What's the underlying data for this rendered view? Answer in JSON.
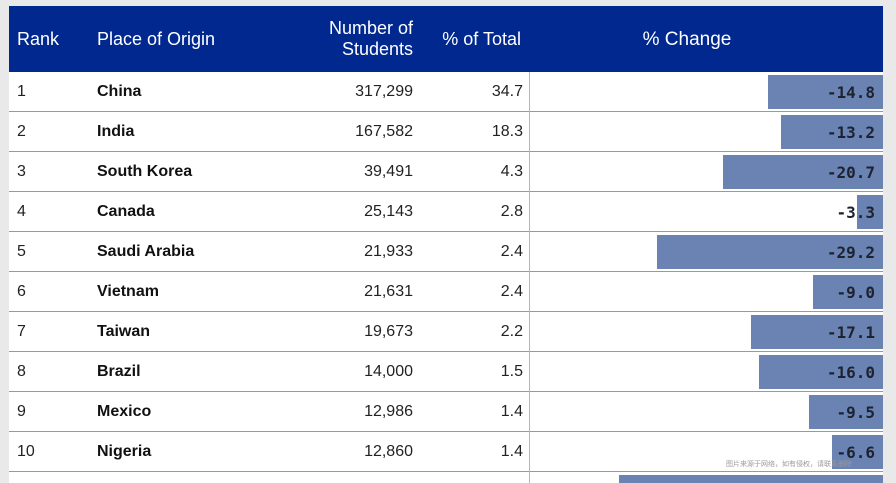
{
  "header": {
    "rank": "Rank",
    "place": "Place of Origin",
    "students_line1": "Number of",
    "students_line2": "Students",
    "pct_total": "% of Total",
    "pct_change": "% Change"
  },
  "chart_data": {
    "type": "table",
    "columns": [
      "Rank",
      "Place of Origin",
      "Number of Students",
      "% of Total",
      "% Change"
    ],
    "rows": [
      {
        "rank": "1",
        "place": "China",
        "students": "317,299",
        "pct_total": "34.7",
        "pct_change": "-14.8",
        "change_value": -14.8
      },
      {
        "rank": "2",
        "place": "India",
        "students": "167,582",
        "pct_total": "18.3",
        "pct_change": "-13.2",
        "change_value": -13.2
      },
      {
        "rank": "3",
        "place": "South Korea",
        "students": "39,491",
        "pct_total": "4.3",
        "pct_change": "-20.7",
        "change_value": -20.7
      },
      {
        "rank": "4",
        "place": "Canada",
        "students": "25,143",
        "pct_total": "2.8",
        "pct_change": "-3.3",
        "change_value": -3.3
      },
      {
        "rank": "5",
        "place": "Saudi Arabia",
        "students": "21,933",
        "pct_total": "2.4",
        "pct_change": "-29.2",
        "change_value": -29.2
      },
      {
        "rank": "6",
        "place": "Vietnam",
        "students": "21,631",
        "pct_total": "2.4",
        "pct_change": "-9.0",
        "change_value": -9.0
      },
      {
        "rank": "7",
        "place": "Taiwan",
        "students": "19,673",
        "pct_total": "2.2",
        "pct_change": "-17.1",
        "change_value": -17.1
      },
      {
        "rank": "8",
        "place": "Brazil",
        "students": "14,000",
        "pct_total": "1.5",
        "pct_change": "-16.0",
        "change_value": -16.0
      },
      {
        "rank": "9",
        "place": "Mexico",
        "students": "12,986",
        "pct_total": "1.4",
        "pct_change": "-9.5",
        "change_value": -9.5
      },
      {
        "rank": "10",
        "place": "Nigeria",
        "students": "12,860",
        "pct_total": "1.4",
        "pct_change": "-6.6",
        "change_value": -6.6
      }
    ],
    "bar_color": "#6a83b3",
    "header_color": "#00288e"
  },
  "watermark": "图片来源于网络，如有侵权，请联系删除"
}
